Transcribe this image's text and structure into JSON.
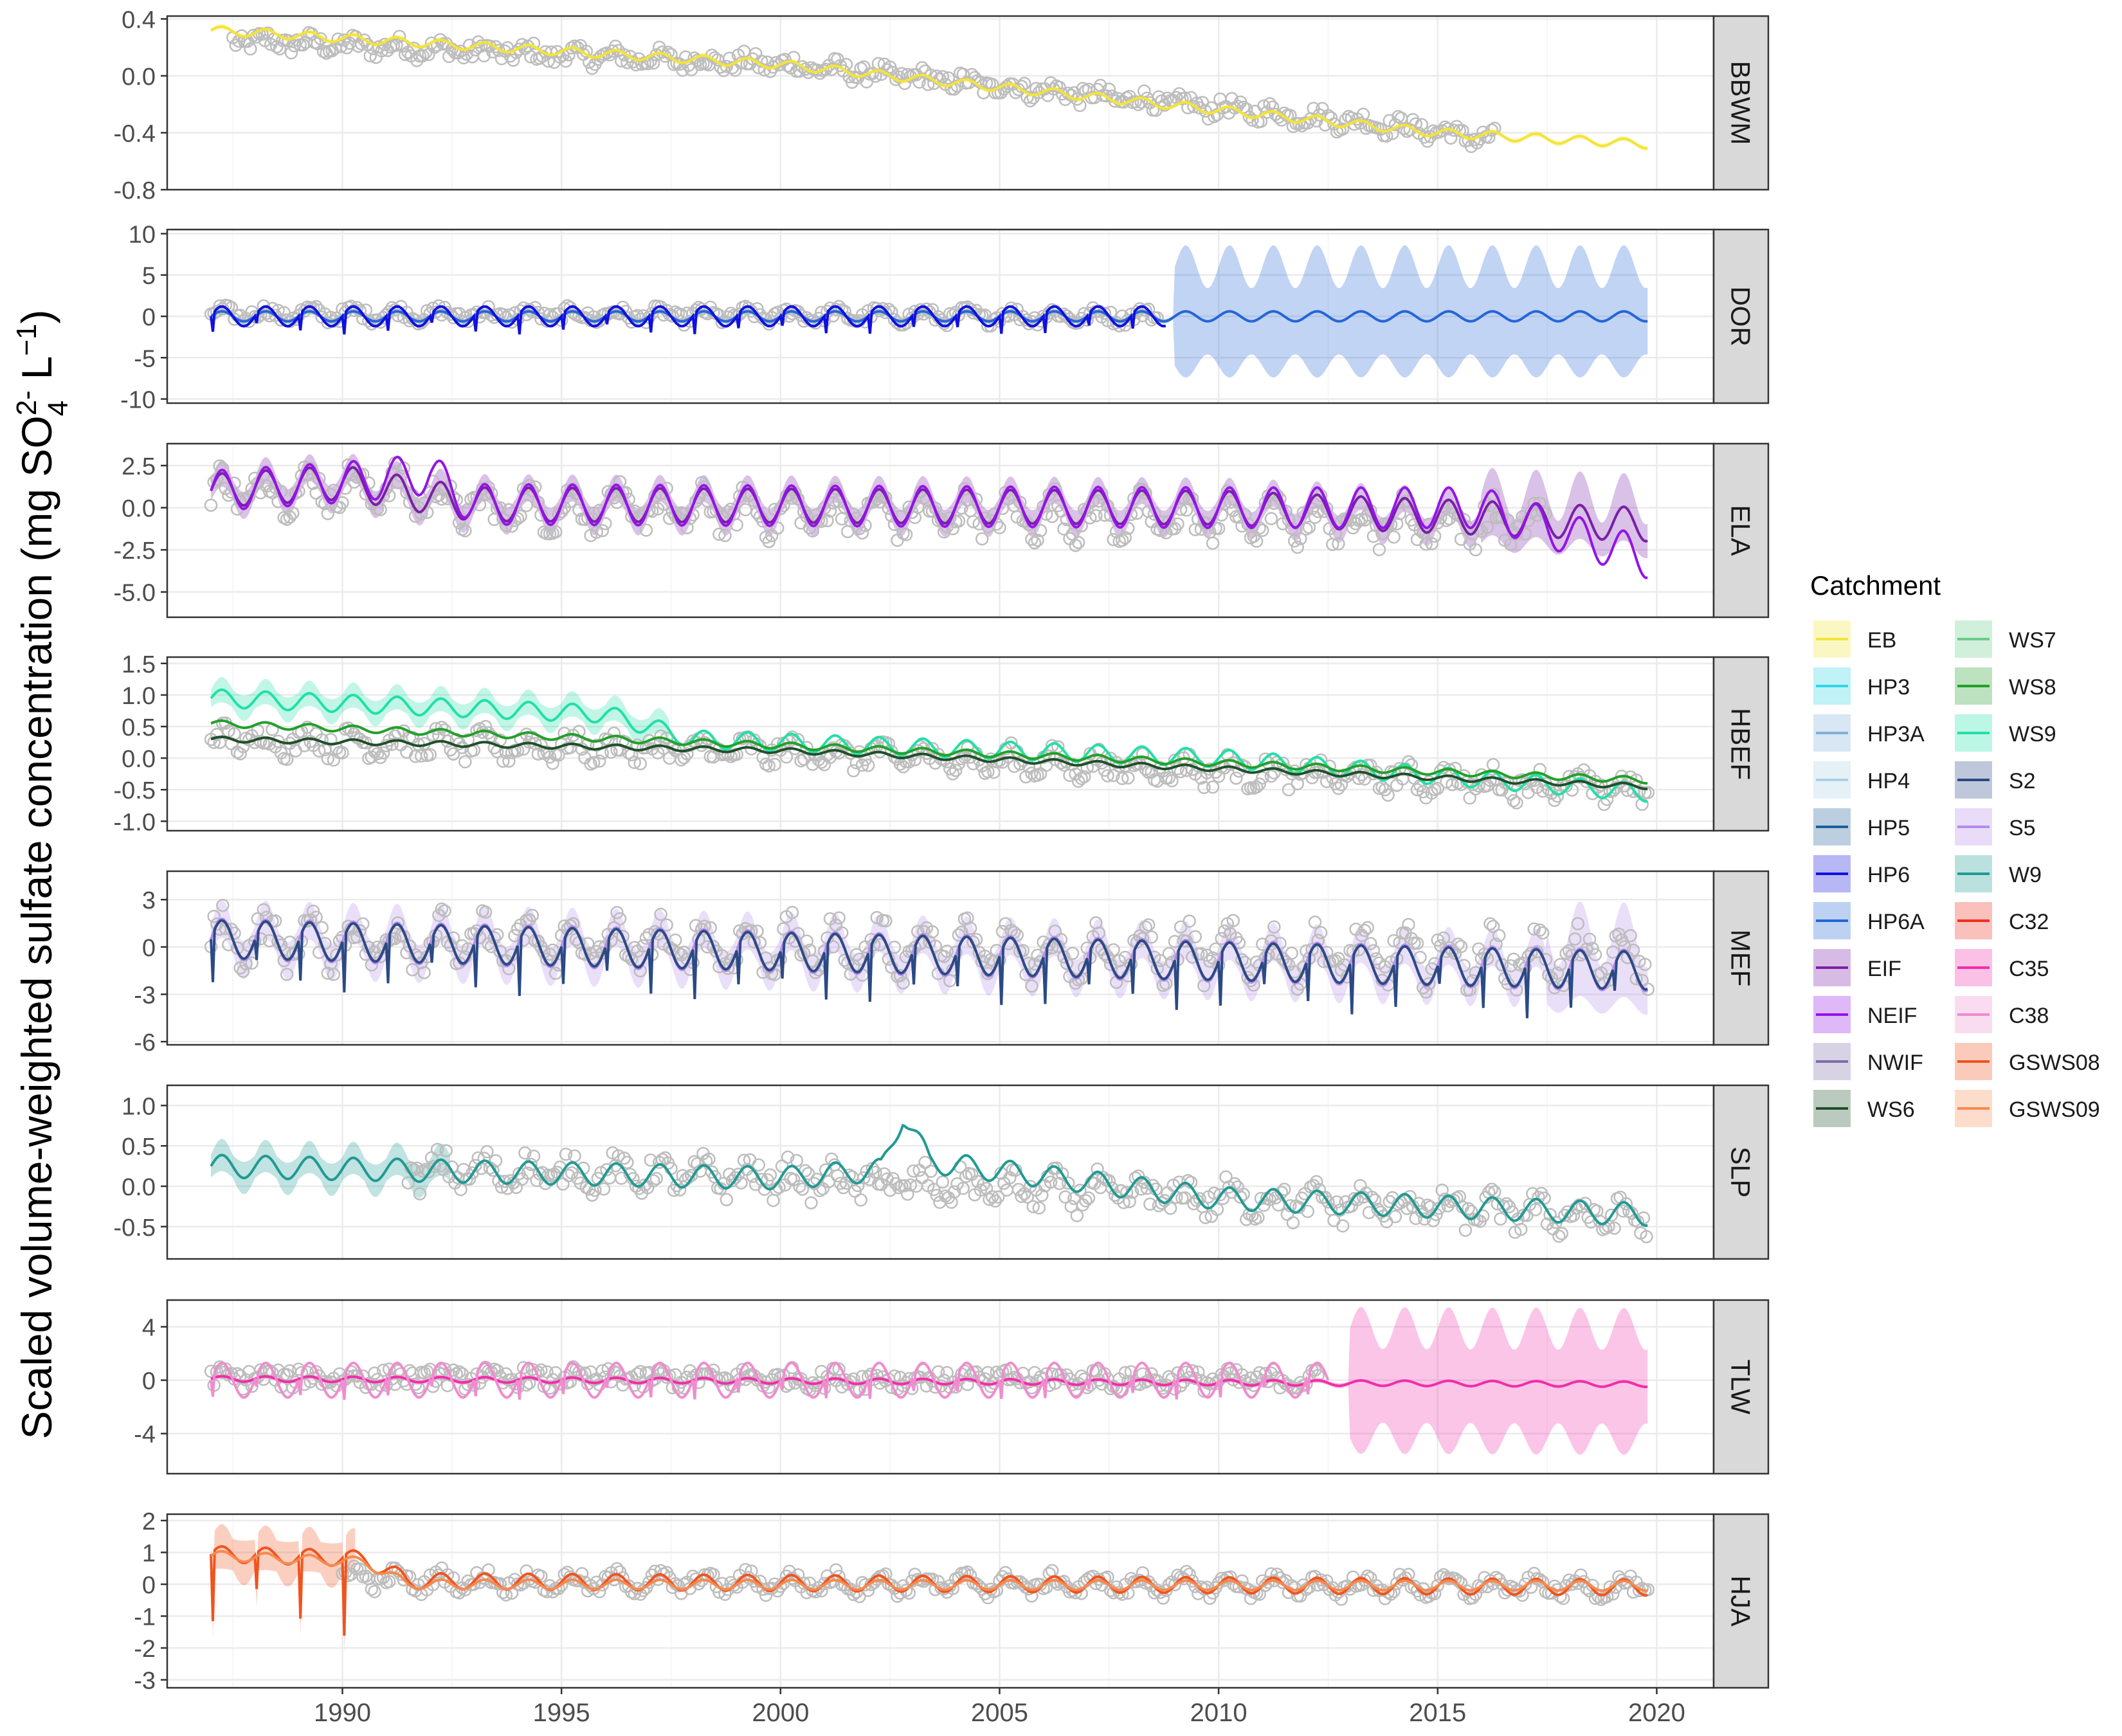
{
  "chart_data": {
    "type": "line",
    "ylabel_parts": {
      "main": "Scaled volume-weighted sulfate concentration (mg SO",
      "sup": "2-",
      "sub": "4",
      "unit": " L",
      "unit_sup": "−1",
      "close": ")"
    },
    "xlim": [
      1986,
      2021.3
    ],
    "x_ticks": [
      1990,
      1995,
      2000,
      2005,
      2010,
      2015,
      2020
    ],
    "x_tick_labels": [
      "1990",
      "1995",
      "2000",
      "2005",
      "2010",
      "2015",
      "2020"
    ],
    "legend": {
      "title": "Catchment",
      "items": [
        {
          "name": "EB",
          "color": "#F3E439"
        },
        {
          "name": "HP3",
          "color": "#30D5E8"
        },
        {
          "name": "HP3A",
          "color": "#7FAFD8"
        },
        {
          "name": "HP4",
          "color": "#A8D0E6"
        },
        {
          "name": "HP5",
          "color": "#1F5F99"
        },
        {
          "name": "HP6",
          "color": "#1010E0"
        },
        {
          "name": "HP6A",
          "color": "#2566D6"
        },
        {
          "name": "EIF",
          "color": "#7A1FA8"
        },
        {
          "name": "NEIF",
          "color": "#9414E8"
        },
        {
          "name": "NWIF",
          "color": "#7D6BA8"
        },
        {
          "name": "WS6",
          "color": "#1F4F2A"
        },
        {
          "name": "WS7",
          "color": "#66CC88"
        },
        {
          "name": "WS8",
          "color": "#22A02A"
        },
        {
          "name": "WS9",
          "color": "#20E0A8"
        },
        {
          "name": "S2",
          "color": "#2B4A85"
        },
        {
          "name": "S5",
          "color": "#B58BEA"
        },
        {
          "name": "W9",
          "color": "#1F9A93"
        },
        {
          "name": "C32",
          "color": "#F03020"
        },
        {
          "name": "C35",
          "color": "#F02EA8"
        },
        {
          "name": "C38",
          "color": "#F08CD0"
        },
        {
          "name": "GSWS08",
          "color": "#F0541E"
        },
        {
          "name": "GSWS09",
          "color": "#F58A50"
        }
      ]
    },
    "facets": [
      {
        "name": "BBWM",
        "ylim": [
          -0.8,
          0.42
        ],
        "ticks": [
          0.4,
          0.0,
          -0.4,
          -0.8
        ],
        "tick_labels": [
          "0.4",
          "0.0",
          "-0.4",
          "-0.8"
        ],
        "series": [
          {
            "name": "EB",
            "color": "#F3E439",
            "start": 1987.0,
            "end": 2019.8,
            "trend": [
              [
                1987,
                0.32
              ],
              [
                2000,
                0.08
              ],
              [
                2015,
                -0.4
              ],
              [
                2019.8,
                -0.48
              ]
            ],
            "amp": 0.03,
            "period": 1,
            "band": 0.02
          }
        ],
        "points": {
          "start": 1987.5,
          "end": 2016.3,
          "trend": [
            [
              1987.5,
              0.25
            ],
            [
              2000,
              0.08
            ],
            [
              2014,
              -0.35
            ],
            [
              2016.3,
              -0.45
            ]
          ],
          "noise": 0.06
        }
      },
      {
        "name": "DOR",
        "ylim": [
          -10.5,
          10.5
        ],
        "ticks": [
          10,
          5,
          0,
          -5,
          -10
        ],
        "tick_labels": [
          "10",
          "5",
          "0",
          "-5",
          "-10"
        ],
        "series": [
          {
            "name": "HP6A",
            "color": "#2566D6",
            "start": 1987.0,
            "end": 2019.8,
            "trend": [
              [
                1987,
                0
              ],
              [
                2019.8,
                0
              ]
            ],
            "amp": 0.6,
            "period": 1,
            "band": 0.3,
            "band_grow": [
              2009,
              8.0
            ]
          },
          {
            "name": "HP6",
            "color": "#1010E0",
            "start": 1987.0,
            "end": 2008.8,
            "trend": [
              [
                1987,
                0
              ],
              [
                2008.8,
                0
              ]
            ],
            "amp": 1.2,
            "period": 1,
            "spikes": -2.5
          }
        ],
        "points": {
          "start": 1987.0,
          "end": 2008.6,
          "trend": [
            [
              1987,
              0.3
            ],
            [
              2008.6,
              0
            ]
          ],
          "noise": 0.7
        }
      },
      {
        "name": "ELA",
        "ylim": [
          -6.5,
          3.8
        ],
        "ticks": [
          2.5,
          0.0,
          -2.5,
          -5.0
        ],
        "tick_labels": [
          "2.5",
          "0.0",
          "-2.5",
          "-5.0"
        ],
        "series": [
          {
            "name": "EIF",
            "color": "#7A1FA8",
            "start": 1987.0,
            "end": 2019.8,
            "trend": [
              [
                1987,
                1.0
              ],
              [
                1990,
                1.5
              ],
              [
                1993,
                0.2
              ],
              [
                2010,
                0
              ],
              [
                2019.8,
                -1.0
              ]
            ],
            "amp": 1.0,
            "period": 1,
            "band": 0.8,
            "band_grow": [
              2016,
              2.0
            ]
          },
          {
            "name": "NEIF",
            "color": "#9414E8",
            "start": 1987.0,
            "end": 2019.8,
            "trend": [
              [
                1987,
                1.0
              ],
              [
                1990,
                1.5
              ],
              [
                1992,
                2.0
              ],
              [
                1993,
                0.2
              ],
              [
                2010,
                0
              ],
              [
                2016,
                0
              ],
              [
                2019.8,
                -3.0
              ]
            ],
            "amp": 1.2,
            "period": 1
          }
        ],
        "points": {
          "start": 1987.0,
          "end": 2017.5,
          "trend": [
            [
              1987,
              1.0
            ],
            [
              1991,
              1.2
            ],
            [
              1993,
              0
            ],
            [
              2017.5,
              -1.0
            ]
          ],
          "noise": 0.9
        }
      },
      {
        "name": "HBEF",
        "ylim": [
          -1.15,
          1.6
        ],
        "ticks": [
          1.5,
          1.0,
          0.5,
          0.0,
          -0.5,
          -1.0
        ],
        "tick_labels": [
          "1.5",
          "1.0",
          "0.5",
          "0.0",
          "-0.5",
          "-1.0"
        ],
        "series": [
          {
            "name": "WS9",
            "color": "#20E0A8",
            "start": 1987.0,
            "end": 2019.8,
            "trend": [
              [
                1987,
                0.95
              ],
              [
                1996,
                0.7
              ],
              [
                1998,
                0.3
              ],
              [
                2010,
                0.0
              ],
              [
                2019.8,
                -0.55
              ]
            ],
            "amp": 0.14,
            "period": 1,
            "band": 0.2,
            "band_until": 1997.5
          },
          {
            "name": "WS8",
            "color": "#22A02A",
            "start": 1987.0,
            "end": 2019.8,
            "trend": [
              [
                1987,
                0.55
              ],
              [
                2000,
                0.2
              ],
              [
                2019.8,
                -0.35
              ]
            ],
            "amp": 0.05,
            "period": 1
          },
          {
            "name": "WS6",
            "color": "#1F4F2A",
            "start": 1987.0,
            "end": 2019.8,
            "trend": [
              [
                1987,
                0.3
              ],
              [
                2000,
                0.12
              ],
              [
                2019.8,
                -0.45
              ]
            ],
            "amp": 0.04,
            "period": 1
          }
        ],
        "points": {
          "start": 1987.0,
          "end": 2019.8,
          "trend": [
            [
              1987,
              0.3
            ],
            [
              2000,
              0.1
            ],
            [
              2019.8,
              -0.5
            ]
          ],
          "noise": 0.18
        }
      },
      {
        "name": "MEF",
        "ylim": [
          -6.2,
          4.8
        ],
        "ticks": [
          3,
          0,
          -3,
          -6
        ],
        "tick_labels": [
          "3",
          "0",
          "-3",
          "-6"
        ],
        "series": [
          {
            "name": "S5",
            "color": "#B58BEA",
            "start": 1987.0,
            "end": 2019.8,
            "trend": [
              [
                1987,
                0.5
              ],
              [
                2019.8,
                -1.5
              ]
            ],
            "amp": 1.3,
            "period": 1,
            "band": 1.2,
            "band_grow": [
              2017.5,
              3.0
            ]
          },
          {
            "name": "S2",
            "color": "#2B4A85",
            "start": 1987.0,
            "end": 2019.8,
            "trend": [
              [
                1987,
                0.5
              ],
              [
                2019.8,
                -1.5
              ]
            ],
            "amp": 1.2,
            "period": 1,
            "spikes": -3.5
          }
        ],
        "points": {
          "start": 1987.0,
          "end": 2019.8,
          "trend": [
            [
              1987,
              0.5
            ],
            [
              2019.8,
              -0.8
            ]
          ],
          "noise": 1.1
        }
      },
      {
        "name": "SLP",
        "ylim": [
          -0.9,
          1.25
        ],
        "ticks": [
          1.0,
          0.5,
          0.0,
          -0.5
        ],
        "tick_labels": [
          "1.0",
          "0.5",
          "0.0",
          "-0.5"
        ],
        "series": [
          {
            "name": "W9",
            "color": "#1F9A93",
            "start": 1987.0,
            "end": 2019.8,
            "trend": [
              [
                1987,
                0.25
              ],
              [
                2000,
                0.1
              ],
              [
                2002.3,
                0.2
              ],
              [
                2002.8,
                0.9
              ],
              [
                2003.4,
                0.3
              ],
              [
                2010,
                -0.15
              ],
              [
                2019.8,
                -0.35
              ]
            ],
            "amp": 0.14,
            "period": 1,
            "band": 0.2,
            "band_until": 1992.5
          }
        ],
        "points": {
          "start": 1991.5,
          "end": 2019.8,
          "trend": [
            [
              1991.5,
              0.2
            ],
            [
              2000,
              0.1
            ],
            [
              2010,
              -0.15
            ],
            [
              2019.8,
              -0.4
            ]
          ],
          "noise": 0.17
        }
      },
      {
        "name": "TLW",
        "ylim": [
          -7.0,
          6.0
        ],
        "ticks": [
          4,
          0,
          -4
        ],
        "tick_labels": [
          "4",
          "0",
          "-4"
        ],
        "series": [
          {
            "name": "C35",
            "color": "#F02EA8",
            "start": 1987.0,
            "end": 2019.8,
            "trend": [
              [
                1987,
                0.1
              ],
              [
                2019.8,
                -0.3
              ]
            ],
            "amp": 0.2,
            "period": 1,
            "band": 0.2,
            "band_grow": [
              2013,
              5.5
            ]
          },
          {
            "name": "C38",
            "color": "#F08CD0",
            "start": 1987.0,
            "end": 2012.5,
            "trend": [
              [
                1987,
                0
              ],
              [
                2012.5,
                0
              ]
            ],
            "amp": 1.3,
            "period": 1,
            "spikes": -1.8
          }
        ],
        "points": {
          "start": 1987.0,
          "end": 2012.3,
          "trend": [
            [
              1987,
              0.2
            ],
            [
              2012.3,
              0
            ]
          ],
          "noise": 0.7
        }
      },
      {
        "name": "HJA",
        "ylim": [
          -3.25,
          2.2
        ],
        "ticks": [
          2,
          1,
          0,
          -1,
          -2,
          -3
        ],
        "tick_labels": [
          "2",
          "1",
          "0",
          "-1",
          "-2",
          "-3"
        ],
        "series": [
          {
            "name": "GSWS08",
            "color": "#F0541E",
            "start": 1987.0,
            "end": 2019.8,
            "trend": [
              [
                1987,
                0.95
              ],
              [
                1990.5,
                0.8
              ],
              [
                1991.5,
                0.1
              ],
              [
                2019.8,
                -0.1
              ]
            ],
            "amp": 0.25,
            "period": 1,
            "band": 0.7,
            "band_until": 1990.3,
            "spikes": -2.5,
            "spike_until": 1990.5
          },
          {
            "name": "GSWS09",
            "color": "#F58A50",
            "start": 1987.0,
            "end": 2019.8,
            "trend": [
              [
                1987,
                0.9
              ],
              [
                1990.5,
                0.7
              ],
              [
                1991.5,
                0
              ],
              [
                2019.8,
                -0.05
              ]
            ],
            "amp": 0.15,
            "period": 1
          }
        ],
        "points": {
          "start": 1990.0,
          "end": 2019.8,
          "trend": [
            [
              1990,
              0.3
            ],
            [
              1991.5,
              0.1
            ],
            [
              2019.8,
              -0.1
            ]
          ],
          "noise": 0.22
        }
      }
    ]
  }
}
